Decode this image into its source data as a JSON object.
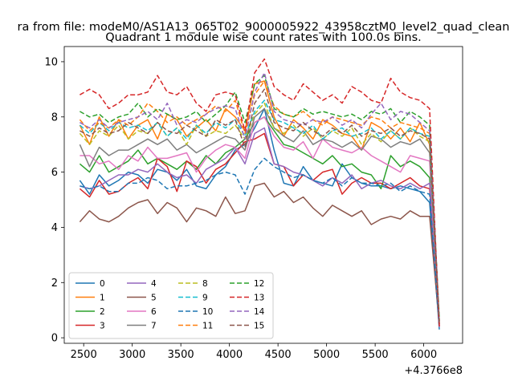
{
  "chart_data": {
    "type": "line",
    "suptitle": "ra from file: modeM0/AS1A13_065T02_9000005922_43958cztM0_level2_quad_clean",
    "title": "Quadrant 1 module wise count rates with 100.0s bins.",
    "xlabel": "",
    "ylabel": "",
    "x_offset_label": "+4.3766e8",
    "x_offset": 437660000,
    "xlim": [
      2300,
      6400
    ],
    "ylim": [
      -0.2,
      10.55
    ],
    "xticks": [
      2500,
      3000,
      3500,
      4000,
      4500,
      5000,
      5500,
      6000
    ],
    "yticks": [
      0,
      2,
      4,
      6,
      8,
      10
    ],
    "grid": false,
    "legend_position": "lower-left",
    "legend_columns": 4,
    "x": [
      2460,
      2560,
      2660,
      2760,
      2860,
      2960,
      3060,
      3160,
      3260,
      3360,
      3460,
      3560,
      3660,
      3760,
      3860,
      3960,
      4060,
      4160,
      4260,
      4360,
      4460,
      4560,
      4660,
      4760,
      4860,
      4960,
      5060,
      5160,
      5260,
      5360,
      5460,
      5560,
      5660,
      5760,
      5860,
      5960,
      6060,
      6160
    ],
    "series": [
      {
        "name": "0",
        "color": "#1f77b4",
        "style": "solid",
        "values": [
          5.7,
          5.2,
          5.9,
          5.5,
          5.7,
          6.0,
          5.9,
          5.6,
          6.1,
          6.0,
          5.7,
          6.1,
          5.5,
          5.4,
          5.9,
          6.2,
          6.8,
          7.0,
          7.6,
          8.3,
          6.8,
          5.6,
          5.5,
          6.2,
          5.7,
          5.6,
          5.5,
          6.3,
          5.8,
          5.6,
          5.5,
          5.5,
          5.4,
          5.5,
          5.4,
          5.3,
          4.9,
          0.3
        ]
      },
      {
        "name": "1",
        "color": "#ff7f0e",
        "style": "solid",
        "values": [
          7.7,
          7.0,
          8.0,
          7.3,
          7.9,
          7.2,
          7.7,
          7.9,
          7.2,
          8.1,
          7.9,
          7.3,
          7.6,
          7.9,
          7.5,
          8.3,
          8.0,
          7.5,
          9.2,
          9.3,
          8.0,
          7.3,
          7.9,
          7.6,
          7.2,
          7.9,
          7.7,
          7.4,
          7.3,
          6.8,
          7.8,
          7.6,
          7.2,
          7.6,
          7.1,
          7.8,
          7.0,
          0.6
        ]
      },
      {
        "name": "2",
        "color": "#2ca02c",
        "style": "solid",
        "values": [
          6.3,
          6.0,
          6.6,
          6.0,
          6.2,
          6.4,
          6.8,
          6.3,
          6.5,
          6.3,
          6.1,
          6.4,
          6.1,
          6.6,
          6.3,
          6.7,
          6.9,
          7.2,
          7.8,
          8.0,
          7.5,
          7.0,
          6.9,
          6.7,
          6.5,
          6.3,
          6.6,
          6.2,
          6.3,
          6.0,
          5.9,
          5.4,
          6.6,
          6.2,
          6.4,
          6.2,
          5.8,
          0.5
        ]
      },
      {
        "name": "3",
        "color": "#d62728",
        "style": "solid",
        "values": [
          5.4,
          5.1,
          5.7,
          5.2,
          5.3,
          5.6,
          5.8,
          5.4,
          6.5,
          6.2,
          5.3,
          6.4,
          6.2,
          5.6,
          6.1,
          6.3,
          6.7,
          7.1,
          7.2,
          7.4,
          6.3,
          6.2,
          5.5,
          5.9,
          5.7,
          6.0,
          6.1,
          5.2,
          5.6,
          5.8,
          5.6,
          5.6,
          5.4,
          5.6,
          5.8,
          5.5,
          5.4,
          0.4
        ]
      },
      {
        "name": "4",
        "color": "#9467bd",
        "style": "solid",
        "values": [
          5.5,
          5.4,
          5.5,
          5.7,
          5.9,
          5.9,
          6.1,
          6.0,
          6.3,
          6.0,
          5.8,
          5.9,
          5.6,
          6.1,
          6.3,
          6.5,
          6.9,
          6.3,
          7.4,
          7.6,
          6.3,
          6.2,
          6.0,
          5.9,
          5.7,
          5.5,
          5.8,
          5.6,
          5.9,
          5.4,
          5.6,
          5.7,
          5.5,
          5.4,
          5.6,
          5.4,
          5.6,
          0.4
        ]
      },
      {
        "name": "5",
        "color": "#8c564b",
        "style": "solid",
        "values": [
          4.2,
          4.6,
          4.3,
          4.2,
          4.4,
          4.7,
          4.9,
          5.0,
          4.5,
          4.9,
          4.7,
          4.2,
          4.7,
          4.6,
          4.4,
          5.1,
          4.5,
          4.6,
          5.5,
          5.6,
          5.1,
          5.3,
          4.9,
          5.1,
          4.7,
          4.4,
          4.8,
          4.6,
          4.4,
          4.6,
          4.1,
          4.3,
          4.4,
          4.3,
          4.6,
          4.4,
          4.4,
          0.5
        ]
      },
      {
        "name": "6",
        "color": "#e377c2",
        "style": "solid",
        "values": [
          6.6,
          6.6,
          6.3,
          6.4,
          6.1,
          6.6,
          6.4,
          6.9,
          6.5,
          6.5,
          6.6,
          6.7,
          6.0,
          6.5,
          6.8,
          7.0,
          6.9,
          6.5,
          7.8,
          8.0,
          7.3,
          6.9,
          6.8,
          7.1,
          6.5,
          7.2,
          6.9,
          6.8,
          6.7,
          6.9,
          6.6,
          6.4,
          6.2,
          6.0,
          6.6,
          6.5,
          6.4,
          0.4
        ]
      },
      {
        "name": "7",
        "color": "#7f7f7f",
        "style": "solid",
        "values": [
          7.0,
          6.2,
          6.9,
          6.6,
          6.8,
          6.8,
          7.0,
          7.2,
          7.0,
          7.2,
          6.8,
          7.0,
          6.7,
          6.9,
          7.1,
          7.3,
          7.2,
          6.8,
          8.0,
          8.3,
          7.6,
          7.3,
          7.1,
          7.5,
          7.0,
          7.2,
          7.1,
          6.9,
          7.1,
          6.8,
          7.3,
          7.2,
          6.9,
          7.1,
          7.0,
          7.2,
          6.7,
          0.5
        ]
      },
      {
        "name": "8",
        "color": "#bcbd22",
        "style": "dashed",
        "values": [
          7.4,
          7.0,
          7.5,
          7.3,
          7.7,
          7.2,
          7.5,
          7.4,
          7.8,
          7.3,
          7.6,
          7.0,
          7.7,
          7.3,
          7.5,
          7.4,
          7.7,
          7.2,
          8.1,
          8.5,
          7.6,
          7.4,
          7.7,
          7.3,
          7.6,
          7.2,
          7.5,
          7.3,
          7.6,
          7.0,
          7.4,
          7.1,
          7.5,
          7.2,
          7.6,
          7.3,
          7.1,
          0.6
        ]
      },
      {
        "name": "9",
        "color": "#17becf",
        "style": "dashed",
        "values": [
          7.7,
          7.4,
          7.8,
          7.5,
          7.8,
          7.6,
          7.7,
          7.5,
          7.8,
          7.3,
          7.6,
          7.2,
          7.7,
          7.4,
          7.8,
          7.6,
          7.9,
          7.3,
          8.2,
          8.6,
          7.9,
          7.8,
          7.6,
          7.4,
          7.7,
          7.2,
          7.5,
          7.6,
          7.3,
          7.4,
          7.6,
          7.2,
          7.5,
          7.2,
          7.6,
          7.4,
          7.3,
          0.6
        ]
      },
      {
        "name": "10",
        "color": "#1f77b4",
        "style": "dashed",
        "values": [
          5.5,
          5.4,
          5.5,
          5.3,
          5.3,
          5.6,
          5.6,
          5.8,
          5.7,
          5.4,
          5.5,
          5.5,
          5.6,
          5.7,
          5.9,
          6.0,
          5.9,
          5.2,
          6.1,
          6.5,
          6.2,
          6.0,
          5.8,
          5.9,
          5.7,
          5.6,
          5.8,
          5.5,
          5.8,
          5.6,
          5.6,
          5.5,
          5.6,
          5.3,
          5.5,
          5.3,
          5.2,
          0.4
        ]
      },
      {
        "name": "11",
        "color": "#ff7f0e",
        "style": "dashed",
        "values": [
          7.9,
          7.5,
          7.8,
          7.6,
          7.9,
          7.7,
          8.0,
          8.5,
          8.2,
          7.8,
          8.0,
          7.7,
          7.9,
          8.1,
          8.4,
          8.2,
          8.6,
          7.4,
          8.8,
          9.3,
          8.4,
          8.1,
          8.0,
          8.2,
          7.9,
          7.7,
          8.0,
          7.9,
          7.8,
          7.7,
          8.0,
          7.9,
          7.6,
          7.8,
          7.7,
          7.6,
          7.4,
          0.6
        ]
      },
      {
        "name": "12",
        "color": "#2ca02c",
        "style": "dashed",
        "values": [
          8.2,
          8.0,
          8.1,
          7.8,
          8.0,
          8.1,
          8.5,
          8.0,
          8.3,
          8.1,
          7.9,
          8.0,
          8.2,
          7.8,
          8.1,
          8.4,
          8.9,
          7.8,
          9.2,
          9.5,
          8.3,
          8.1,
          8.0,
          8.3,
          8.1,
          8.2,
          8.1,
          8.0,
          8.1,
          7.9,
          8.2,
          8.1,
          8.3,
          7.8,
          8.2,
          8.0,
          7.7,
          0.7
        ]
      },
      {
        "name": "13",
        "color": "#d62728",
        "style": "dashed",
        "values": [
          8.8,
          9.0,
          8.8,
          8.3,
          8.5,
          8.8,
          8.8,
          8.9,
          9.5,
          8.9,
          8.8,
          9.1,
          8.5,
          8.2,
          8.8,
          8.9,
          8.8,
          7.5,
          9.6,
          10.1,
          9.1,
          8.8,
          8.6,
          9.2,
          8.9,
          8.6,
          8.8,
          8.5,
          9.1,
          8.9,
          8.6,
          8.5,
          9.4,
          8.9,
          8.7,
          8.6,
          8.3,
          0.4
        ]
      },
      {
        "name": "14",
        "color": "#9467bd",
        "style": "dashed",
        "values": [
          7.8,
          7.6,
          7.9,
          7.6,
          7.8,
          7.9,
          8.0,
          8.2,
          7.9,
          8.5,
          7.7,
          7.9,
          7.8,
          8.1,
          8.3,
          8.4,
          8.3,
          7.2,
          8.9,
          9.6,
          8.2,
          7.9,
          7.8,
          7.7,
          7.9,
          7.8,
          8.0,
          7.7,
          7.9,
          7.6,
          8.1,
          8.5,
          7.9,
          8.2,
          8.1,
          7.8,
          7.5,
          0.6
        ]
      },
      {
        "name": "15",
        "color": "#8c564b",
        "style": "dashed",
        "values": [
          7.5,
          7.3,
          7.6,
          7.4,
          7.5,
          7.8,
          7.6,
          7.4,
          7.8,
          7.5,
          7.4,
          7.7,
          7.5,
          7.3,
          7.9,
          7.7,
          7.9,
          6.9,
          8.5,
          9.0,
          7.8,
          7.6,
          7.5,
          7.8,
          7.5,
          7.3,
          7.6,
          7.4,
          7.7,
          7.3,
          7.5,
          7.4,
          7.6,
          7.3,
          7.5,
          7.4,
          7.2,
          0.5
        ]
      }
    ]
  }
}
